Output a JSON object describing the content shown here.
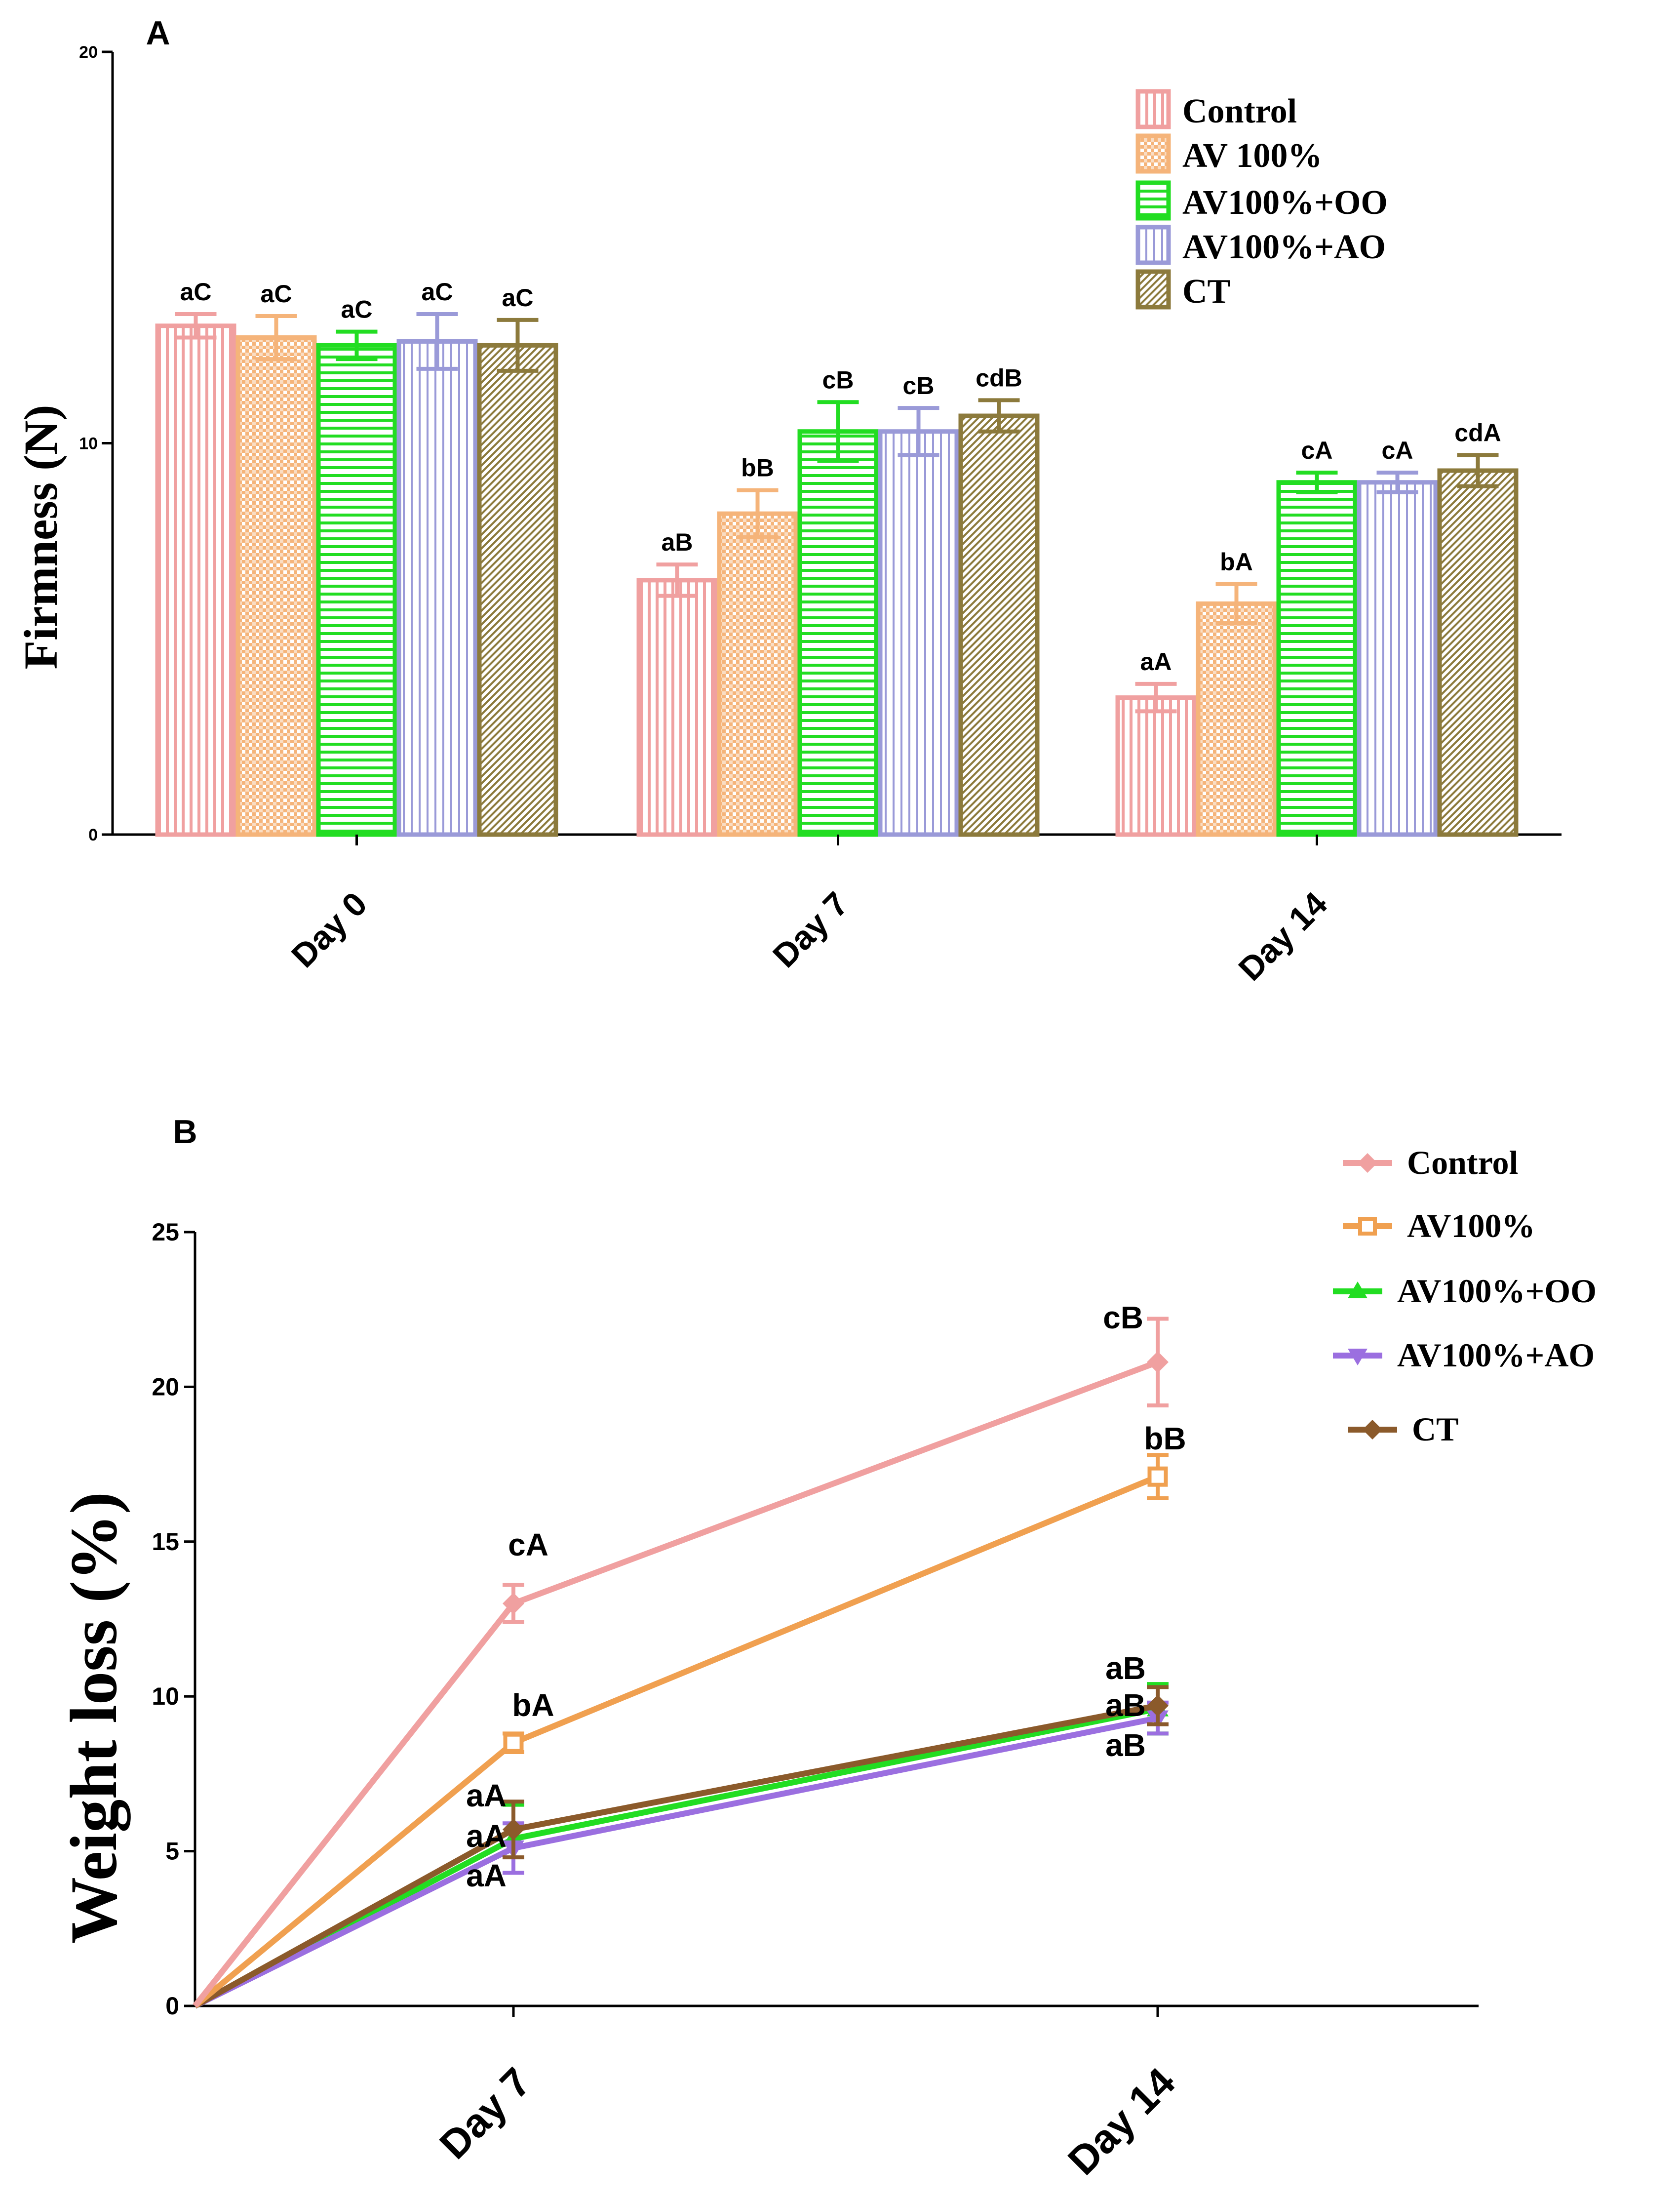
{
  "colors": {
    "control": "#f0a0a0",
    "av100": "#f5b47a",
    "av100_oo": "#22dd22",
    "av100_ao": "#9a9ad8",
    "ct": "#8c7a3c",
    "ct_line": "#8b5a2b",
    "av100_ao_line": "#9b6fe0",
    "av100_line": "#f0a050"
  },
  "chart_data": [
    {
      "type": "bar",
      "panel_label": "A",
      "ylabel": "Firmness (N)",
      "xlabel": "",
      "ylim": [
        0,
        20
      ],
      "yticks": [
        "0",
        "10",
        "20"
      ],
      "categories": [
        "Day 0",
        "Day 7",
        "Day 14"
      ],
      "legend_position": "top-right",
      "series": [
        {
          "name": "Control",
          "pattern": "vertical",
          "color_key": "control",
          "values": [
            13.0,
            6.5,
            3.5
          ],
          "errors": [
            0.3,
            0.4,
            0.35
          ],
          "letters": [
            "aC",
            "aB",
            "aA"
          ]
        },
        {
          "name": "AV 100%",
          "pattern": "checker",
          "color_key": "av100",
          "values": [
            12.7,
            8.2,
            5.9
          ],
          "errors": [
            0.55,
            0.6,
            0.5
          ],
          "letters": [
            "aC",
            "bB",
            "bA"
          ]
        },
        {
          "name": "AV100%+OO",
          "pattern": "horizontal",
          "color_key": "av100_oo",
          "values": [
            12.5,
            10.3,
            9.0
          ],
          "errors": [
            0.35,
            0.75,
            0.25
          ],
          "letters": [
            "aC",
            "cB",
            "cA"
          ]
        },
        {
          "name": "AV100%+AO",
          "pattern": "vertical-wide",
          "color_key": "av100_ao",
          "values": [
            12.6,
            10.3,
            9.0
          ],
          "errors": [
            0.7,
            0.6,
            0.25
          ],
          "letters": [
            "aC",
            "cB",
            "cA"
          ]
        },
        {
          "name": "CT",
          "pattern": "diagonal",
          "color_key": "ct",
          "values": [
            12.5,
            10.7,
            9.3
          ],
          "errors": [
            0.65,
            0.4,
            0.4
          ],
          "letters": [
            "aC",
            "cdB",
            "cdA"
          ]
        }
      ]
    },
    {
      "type": "line",
      "panel_label": "B",
      "ylabel": "Weight loss (%)",
      "xlabel": "",
      "ylim": [
        0,
        25
      ],
      "yticks": [
        "0",
        "5",
        "10",
        "15",
        "20",
        "25"
      ],
      "categories": [
        "Day 7",
        "Day 14"
      ],
      "x": [
        0,
        7,
        14
      ],
      "legend_position": "top-right",
      "series": [
        {
          "name": "Control",
          "marker": "diamond",
          "color_key": "control",
          "values": [
            0,
            13.0,
            20.8
          ],
          "errors": [
            0,
            0.6,
            1.4
          ],
          "letters": [
            "",
            "cA",
            "cB"
          ]
        },
        {
          "name": "AV100%",
          "marker": "square",
          "color_key": "av100_line",
          "values": [
            0,
            8.5,
            17.1
          ],
          "errors": [
            0,
            0.3,
            0.7
          ],
          "letters": [
            "",
            "bA",
            "bB"
          ]
        },
        {
          "name": "AV100%+OO",
          "marker": "triangle-up",
          "color_key": "av100_oo",
          "values": [
            0,
            5.4,
            9.6
          ],
          "errors": [
            0,
            1.1,
            0.8
          ],
          "letters": [
            "",
            "aA",
            "aB"
          ]
        },
        {
          "name": "AV100%+AO",
          "marker": "triangle-down",
          "color_key": "av100_ao_line",
          "values": [
            0,
            5.1,
            9.3
          ],
          "errors": [
            0,
            0.8,
            0.5
          ],
          "letters": [
            "",
            "aA",
            "aB"
          ]
        },
        {
          "name": "CT",
          "marker": "diamond",
          "color_key": "ct_line",
          "values": [
            0,
            5.7,
            9.7
          ],
          "errors": [
            0,
            0.9,
            0.6
          ],
          "letters": [
            "",
            "aA",
            "aB"
          ]
        }
      ]
    }
  ]
}
